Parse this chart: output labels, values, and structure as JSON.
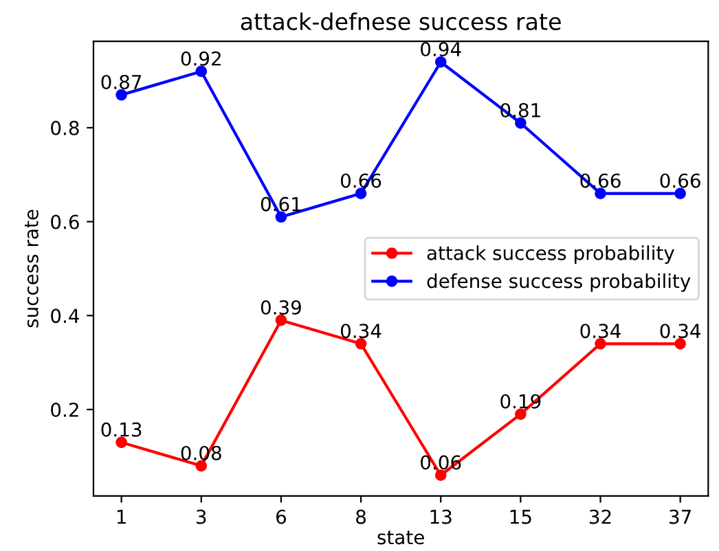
{
  "chart_data": {
    "type": "line",
    "title": "attack-defnese success rate",
    "xlabel": "state",
    "ylabel": "success rate",
    "categories": [
      "1",
      "3",
      "6",
      "8",
      "13",
      "15",
      "32",
      "37"
    ],
    "series": [
      {
        "name": "attack success probability",
        "color": "#ff0000",
        "values": [
          0.13,
          0.08,
          0.39,
          0.34,
          0.06,
          0.19,
          0.34,
          0.34
        ]
      },
      {
        "name": "defense success probability",
        "color": "#0000ff",
        "values": [
          0.87,
          0.92,
          0.61,
          0.66,
          0.94,
          0.81,
          0.66,
          0.66
        ]
      }
    ],
    "ylim": [
      0.016,
      0.984
    ],
    "yticks": [
      0.2,
      0.4,
      0.6,
      0.8
    ],
    "data_labels": true,
    "legend": "right",
    "marker": "circle",
    "line_style": "solid",
    "grid": false
  }
}
